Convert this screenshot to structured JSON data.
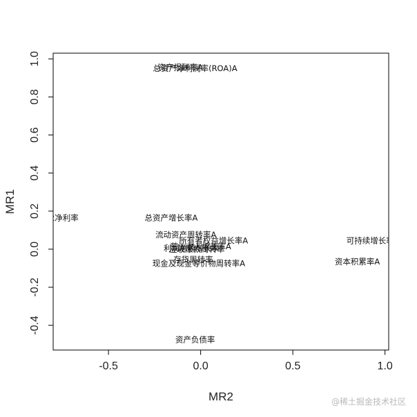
{
  "chart_data": {
    "type": "scatter",
    "title": "",
    "xlabel": "MR2",
    "ylabel": "MR1",
    "xlim": [
      -0.8,
      1.02
    ],
    "ylim": [
      -0.53,
      1.03
    ],
    "xticks": [
      "-0.5",
      "0.0",
      "0.5",
      "1.0"
    ],
    "xtick_values": [
      -0.5,
      0.0,
      0.5,
      1.0
    ],
    "yticks": [
      "-0.4",
      "-0.2",
      "0.0",
      "0.2",
      "0.4",
      "0.6",
      "0.8",
      "1.0"
    ],
    "ytick_values": [
      -0.4,
      -0.2,
      0.0,
      0.2,
      0.4,
      0.6,
      0.8,
      1.0
    ],
    "grid": false,
    "points": [
      {
        "label": "总资产净利润率(ROA)A",
        "x": -0.03,
        "y": 0.95
      },
      {
        "label": "资产报酬率A",
        "x": -0.11,
        "y": 0.955
      },
      {
        "label": "总资产增长率A",
        "x": -0.16,
        "y": 0.165
      },
      {
        "label": "营业净利率",
        "x": -0.77,
        "y": 0.165
      },
      {
        "label": "流动资产周转率A",
        "x": -0.08,
        "y": 0.075
      },
      {
        "label": "所有者权益增长率A",
        "x": 0.07,
        "y": 0.045
      },
      {
        "label": "营业收入增长率A",
        "x": 0.0,
        "y": 0.015
      },
      {
        "label": "利润总额增长率",
        "x": -0.05,
        "y": 0.005
      },
      {
        "label": "应收账款周转率",
        "x": -0.02,
        "y": 0.0
      },
      {
        "label": "存货周转率",
        "x": -0.04,
        "y": -0.055
      },
      {
        "label": "现金及现金等价物周转率A",
        "x": -0.01,
        "y": -0.075
      },
      {
        "label": "资本积累率A",
        "x": 0.85,
        "y": -0.065
      },
      {
        "label": "可持续增长率",
        "x": 0.92,
        "y": 0.045
      },
      {
        "label": "资产负债率",
        "x": -0.03,
        "y": -0.475
      }
    ]
  },
  "watermark": "@稀土掘金技术社区"
}
